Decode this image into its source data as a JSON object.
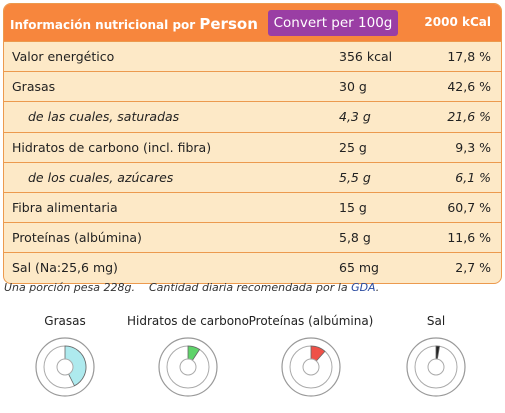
{
  "header": {
    "title": "Información nutricional por",
    "person": "Person",
    "button": "Convert per 100g",
    "reference": "2000 kCal"
  },
  "table": {
    "rows": [
      [
        "Valor energético",
        "356 kcal",
        "17,8 %"
      ],
      [
        "Grasas",
        "30 g",
        "42,6 %"
      ],
      [
        "de las cuales, saturadas",
        "4,3 g",
        "21,6 %"
      ],
      [
        "Hidratos de carbono (incl. fibra)",
        "25 g",
        "9,3 %"
      ],
      [
        "de los cuales, azúcares",
        "5,5 g",
        "6,1 %"
      ],
      [
        "Fibra alimentaria",
        "15 g",
        "60,7 %"
      ],
      [
        "Proteínas (albúmina)",
        "5,8 g",
        "11,6 %"
      ],
      [
        "Sal (Na:25,6 mg)",
        "65 mg",
        "2,7 %"
      ]
    ]
  },
  "footnote": {
    "portion": "Una porción pesa 228g.",
    "text": "Cantidad diaria recomendada por la",
    "link": "GDA",
    "end": "."
  },
  "gauges": [
    {
      "label": "Grasas",
      "value": 42.6,
      "color": "#aeeaee"
    },
    {
      "label": "Hidratos de carbono",
      "value": 9.3,
      "color": "#5fd36a"
    },
    {
      "label": "Proteínas (albúmina)",
      "value": 11.6,
      "color": "#ef5148"
    },
    {
      "label": "Sal",
      "value": 2.7,
      "color": "#222222"
    }
  ]
}
